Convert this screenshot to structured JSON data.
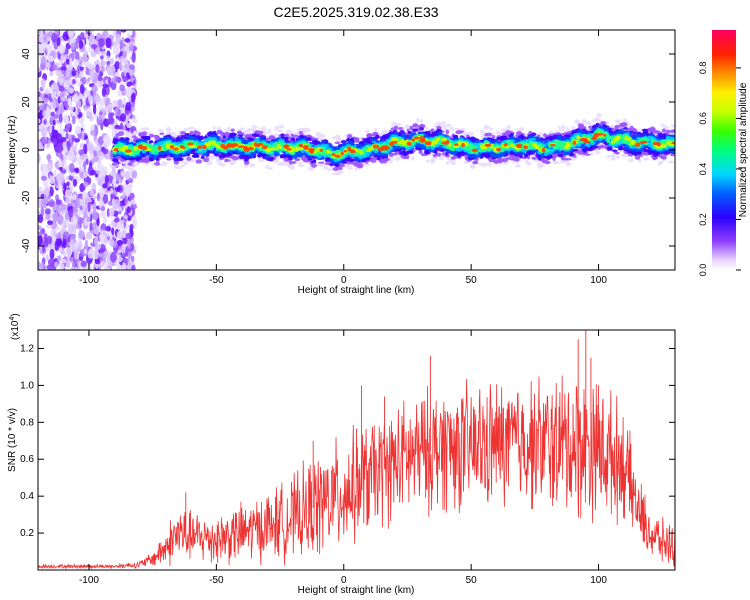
{
  "title": "C2E5.2025.319.02.38.E33",
  "chart_data": [
    {
      "type": "heatmap",
      "name": "spectrogram",
      "xlabel": "Height of straight line (km)",
      "ylabel": "Frequency (Hz)",
      "xlim": [
        -120,
        130
      ],
      "ylim": [
        -50,
        50
      ],
      "xticks": [
        -100,
        -50,
        0,
        50,
        100
      ],
      "yticks": [
        -40,
        -20,
        0,
        20,
        40
      ],
      "colorbar": {
        "label": "Normalized spectral amplitude",
        "range": [
          0,
          0.95
        ],
        "ticks": [
          0.0,
          0.2,
          0.4,
          0.6,
          0.8
        ],
        "tick_labels": [
          "0.0",
          "0.2",
          "0.4",
          "0.6",
          "0.8"
        ]
      },
      "signal_trace": {
        "start_km": -90,
        "points": [
          [
            -90,
            0
          ],
          [
            -70,
            1
          ],
          [
            -50,
            2
          ],
          [
            -30,
            1
          ],
          [
            -20,
            1
          ],
          [
            -10,
            0
          ],
          [
            -5,
            -2
          ],
          [
            0,
            -1
          ],
          [
            10,
            0
          ],
          [
            20,
            3
          ],
          [
            30,
            4
          ],
          [
            40,
            3
          ],
          [
            50,
            1
          ],
          [
            60,
            1
          ],
          [
            70,
            2
          ],
          [
            80,
            1
          ],
          [
            90,
            3
          ],
          [
            100,
            6
          ],
          [
            110,
            4
          ],
          [
            120,
            3
          ],
          [
            130,
            2
          ]
        ]
      }
    },
    {
      "type": "line",
      "name": "snr",
      "xlabel": "Height of straight line (km)",
      "ylabel": "SNR (10 * v/v)",
      "multiplier_label": "(x10",
      "multiplier_exp": "4",
      "multiplier_close": ")",
      "xlim": [
        -120,
        130
      ],
      "ylim": [
        0,
        1.3
      ],
      "xticks": [
        -100,
        -50,
        0,
        50,
        100
      ],
      "yticks": [
        0.2,
        0.4,
        0.6,
        0.8,
        1.0,
        1.2
      ],
      "ytick_labels": [
        "0.2",
        "0.4",
        "0.6",
        "0.8",
        "1.0",
        "1.2"
      ],
      "color": "#ee3333",
      "envelope": {
        "x": [
          -120,
          -90,
          -80,
          -75,
          -70,
          -65,
          -60,
          -50,
          -40,
          -30,
          -20,
          -10,
          0,
          10,
          20,
          30,
          40,
          50,
          60,
          70,
          80,
          90,
          100,
          110,
          115,
          120,
          125,
          130
        ],
        "mean": [
          0.02,
          0.02,
          0.03,
          0.06,
          0.12,
          0.2,
          0.18,
          0.17,
          0.2,
          0.24,
          0.28,
          0.35,
          0.42,
          0.5,
          0.58,
          0.63,
          0.67,
          0.66,
          0.68,
          0.7,
          0.68,
          0.68,
          0.66,
          0.58,
          0.35,
          0.2,
          0.15,
          0.14
        ],
        "spread": [
          0.01,
          0.01,
          0.02,
          0.04,
          0.1,
          0.16,
          0.13,
          0.14,
          0.16,
          0.18,
          0.22,
          0.28,
          0.3,
          0.3,
          0.3,
          0.32,
          0.34,
          0.34,
          0.34,
          0.34,
          0.36,
          0.4,
          0.36,
          0.3,
          0.18,
          0.14,
          0.12,
          0.12
        ]
      },
      "peaks": [
        [
          -62,
          0.42
        ],
        [
          -12,
          0.7
        ],
        [
          7,
          1.0
        ],
        [
          16,
          0.94
        ],
        [
          34,
          1.16
        ],
        [
          90,
          0.9
        ],
        [
          92,
          1.25
        ],
        [
          95,
          1.3
        ],
        [
          97,
          1.15
        ],
        [
          100,
          1.0
        ]
      ]
    }
  ]
}
